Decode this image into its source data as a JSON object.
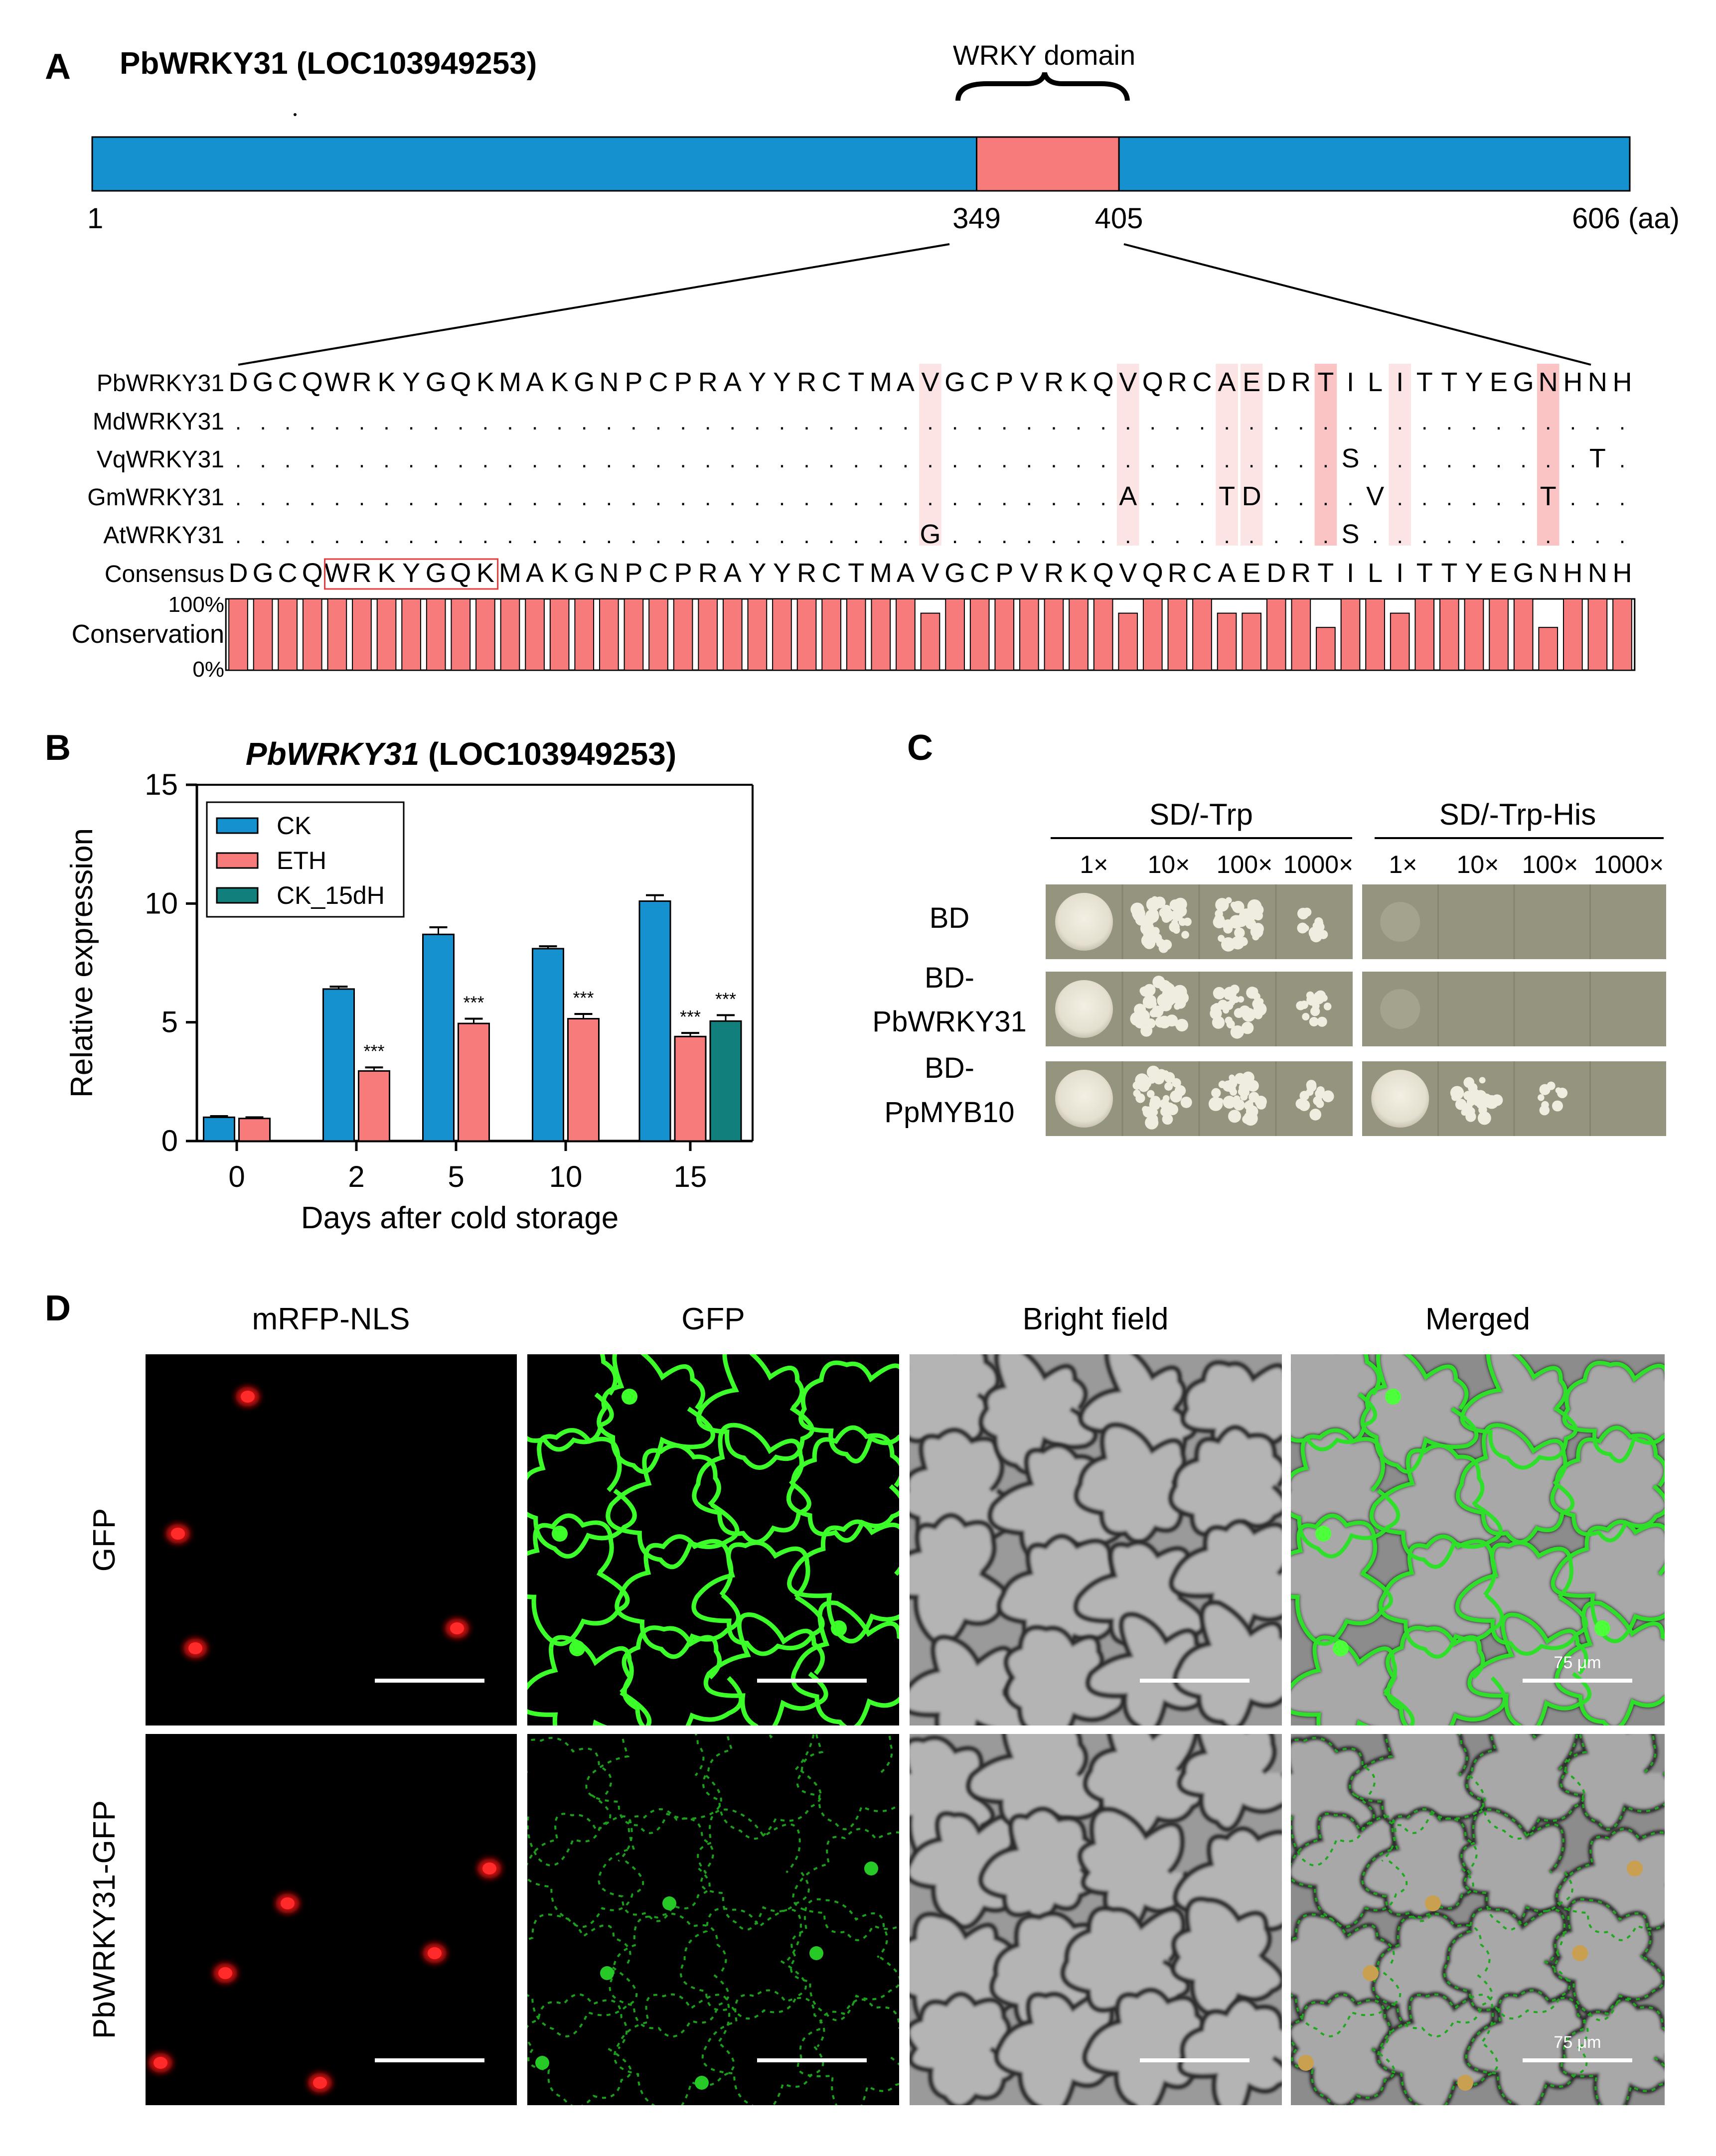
{
  "colors": {
    "blue": "#1591cf",
    "salmon": "#f77b7b",
    "teal": "#11807c",
    "salmon_light": "#fde4e4",
    "salmon_mid": "#fbc4c4",
    "plate_bg": "#95957f"
  },
  "panel_a": {
    "label": "A",
    "title": "PbWRKY31 (LOC103949253)",
    "domain_label": "WRKY domain",
    "protein_length": 606,
    "domain_start": 349,
    "domain_end": 405,
    "ticks": [
      "1",
      "349",
      "405",
      "606 (aa)"
    ],
    "alignment": {
      "rows": [
        {
          "name": "PbWRKY31",
          "seq": "DGCQWRKYGQKMAKGNPCPRAYYRCTMAVGCPVRKQVQRCAEDRTILITTYEGNHNH"
        },
        {
          "name": "MdWRKY31",
          "seq": "........................................................."
        },
        {
          "name": "VqWRKY31",
          "seq": ".............................................S.........T..."
        },
        {
          "name": "GmWRKY31",
          "seq": "....................................A...TD....V......T..."
        },
        {
          "name": "AtWRKY31",
          "seq": "............................G................S............"
        },
        {
          "name": "Consensus",
          "seq": "DGCQWRKYGQKMAKGNPCPRAYYRCTMAVGCPVRKQVQRCAEDRTILITTYEGNHNH"
        }
      ],
      "boxed_motif": "WRKYGQK",
      "conservation_label": "Conservation",
      "conservation_top": "100%",
      "conservation_bottom": "0%",
      "conservation": [
        100,
        100,
        100,
        100,
        100,
        100,
        100,
        100,
        100,
        100,
        100,
        100,
        100,
        100,
        100,
        100,
        100,
        100,
        100,
        100,
        100,
        100,
        100,
        100,
        100,
        100,
        100,
        100,
        80,
        100,
        100,
        100,
        100,
        100,
        100,
        100,
        80,
        100,
        100,
        100,
        80,
        80,
        100,
        100,
        60,
        100,
        100,
        80,
        100,
        100,
        100,
        100,
        100,
        60,
        100,
        100,
        100
      ]
    }
  },
  "panel_b": {
    "label": "B",
    "chart_data": {
      "type": "bar",
      "title": "PbWRKY31 (LOC103949253)",
      "title_italic": "PbWRKY31",
      "title_rest": " (LOC103949253)",
      "xlabel": "Days after cold storage",
      "ylabel": "Relative expression",
      "categories": [
        "0",
        "2",
        "5",
        "10",
        "15"
      ],
      "ylim": [
        0,
        15
      ],
      "yticks": [
        "0",
        "5",
        "10",
        "15"
      ],
      "series": [
        {
          "name": "CK",
          "values": [
            1.0,
            6.4,
            8.7,
            8.1,
            10.1
          ],
          "errors": [
            0.05,
            0.1,
            0.3,
            0.1,
            0.25
          ]
        },
        {
          "name": "ETH",
          "values": [
            0.95,
            2.95,
            4.95,
            5.15,
            4.4
          ],
          "errors": [
            0.05,
            0.15,
            0.2,
            0.2,
            0.15
          ]
        },
        {
          "name": "CK_15dH",
          "values": [
            null,
            null,
            null,
            null,
            5.05
          ],
          "errors": [
            null,
            null,
            null,
            null,
            0.25
          ]
        }
      ],
      "significance": [
        {
          "category": "2",
          "series": "ETH",
          "text": "***"
        },
        {
          "category": "5",
          "series": "ETH",
          "text": "***"
        },
        {
          "category": "10",
          "series": "ETH",
          "text": "***"
        },
        {
          "category": "15",
          "series": "ETH",
          "text": "***"
        },
        {
          "category": "15",
          "series": "CK_15dH",
          "text": "***"
        }
      ],
      "legend_position": "top-left",
      "grid": false
    }
  },
  "panel_c": {
    "label": "C",
    "media": [
      "SD/-Trp",
      "SD/-Trp-His"
    ],
    "dilutions": [
      "1×",
      "10×",
      "100×",
      "1000×"
    ],
    "constructs": [
      {
        "line1": "BD",
        "line2": ""
      },
      {
        "line1": "BD-",
        "line2": "PbWRKY31"
      },
      {
        "line1": "BD-",
        "line2": "PpMYB10"
      }
    ]
  },
  "panel_d": {
    "label": "D",
    "columns": [
      "mRFP-NLS",
      "GFP",
      "Bright field",
      "Merged"
    ],
    "rows": [
      "GFP",
      "PbWRKY31-GFP"
    ],
    "scale_label": "75 μm"
  }
}
